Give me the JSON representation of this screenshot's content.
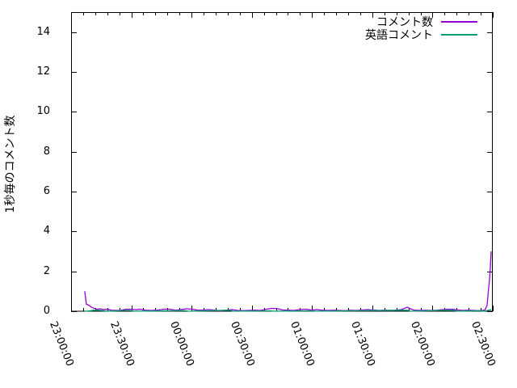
{
  "chart_data": {
    "type": "line",
    "title": "",
    "xlabel": "",
    "ylabel": "1秒毎のコメント数",
    "grid": false,
    "legend_position": "top-right-inside",
    "ylim": [
      0,
      15
    ],
    "y_ticks": [
      0,
      2,
      4,
      6,
      8,
      10,
      12,
      14
    ],
    "x_ticks": [
      "23:00:00",
      "23:30:00",
      "00:00:00",
      "00:30:00",
      "01:00:00",
      "01:30:00",
      "02:00:00",
      "02:30:00"
    ],
    "x_tick_minutes": [
      0,
      30,
      60,
      90,
      120,
      150,
      180,
      210
    ],
    "x_minor_step_minutes": 6,
    "xlim_minutes": [
      0,
      210
    ],
    "axis_color": "#000000",
    "background_color": "#ffffff",
    "series": [
      {
        "name": "コメント数",
        "color": "#9400d3",
        "points": [
          [
            6.8,
            1.0
          ],
          [
            7.6,
            0.35
          ],
          [
            8.9,
            0.3
          ],
          [
            10.1,
            0.2
          ],
          [
            11.3,
            0.15
          ],
          [
            12.9,
            0.1
          ],
          [
            14.5,
            0.12
          ],
          [
            16.1,
            0.08
          ],
          [
            18.1,
            0.1
          ],
          [
            20.1,
            0.05
          ],
          [
            22.5,
            0.04
          ],
          [
            24.9,
            0.05
          ],
          [
            27.4,
            0.1
          ],
          [
            29.8,
            0.1
          ],
          [
            32.2,
            0.08
          ],
          [
            34.6,
            0.1
          ],
          [
            37,
            0.05
          ],
          [
            40.2,
            0.04
          ],
          [
            43.4,
            0.06
          ],
          [
            46.3,
            0.1
          ],
          [
            49.1,
            0.1
          ],
          [
            51.9,
            0.05
          ],
          [
            54.7,
            0.08
          ],
          [
            57.5,
            0.12
          ],
          [
            60.3,
            0.1
          ],
          [
            63.2,
            0.05
          ],
          [
            66,
            0.06
          ],
          [
            68.8,
            0.08
          ],
          [
            71.6,
            0.05
          ],
          [
            74.4,
            0.03
          ],
          [
            77.2,
            0.05
          ],
          [
            80.1,
            0.08
          ],
          [
            82.9,
            0.04
          ],
          [
            85.7,
            0.03
          ],
          [
            88.5,
            0.04
          ],
          [
            91.3,
            0.05
          ],
          [
            94.1,
            0.04
          ],
          [
            97.4,
            0.1
          ],
          [
            100.2,
            0.14
          ],
          [
            103,
            0.12
          ],
          [
            105.4,
            0.06
          ],
          [
            108.2,
            0.05
          ],
          [
            111,
            0.04
          ],
          [
            113.9,
            0.08
          ],
          [
            116.7,
            0.1
          ],
          [
            119.5,
            0.06
          ],
          [
            122.3,
            0.08
          ],
          [
            125.1,
            0.05
          ],
          [
            127.9,
            0.04
          ],
          [
            130.8,
            0.05
          ],
          [
            133.6,
            0.04
          ],
          [
            136.4,
            0.03
          ],
          [
            139.2,
            0.05
          ],
          [
            142,
            0.04
          ],
          [
            144.8,
            0.06
          ],
          [
            147.7,
            0.08
          ],
          [
            150.5,
            0.06
          ],
          [
            153.3,
            0.04
          ],
          [
            156.1,
            0.05
          ],
          [
            158.9,
            0.04
          ],
          [
            161.7,
            0.05
          ],
          [
            164.5,
            0.08
          ],
          [
            167.4,
            0.2
          ],
          [
            169,
            0.12
          ],
          [
            171,
            0.05
          ],
          [
            173.8,
            0.04
          ],
          [
            176.6,
            0.05
          ],
          [
            179.4,
            0.04
          ],
          [
            182.3,
            0.05
          ],
          [
            185.1,
            0.08
          ],
          [
            187.5,
            0.1
          ],
          [
            189.9,
            0.1
          ],
          [
            192.3,
            0.06
          ],
          [
            195.1,
            0.04
          ],
          [
            197.9,
            0.05
          ],
          [
            200.8,
            0.04
          ],
          [
            203.6,
            0.03
          ],
          [
            206,
            0.05
          ],
          [
            207.2,
            0.3
          ],
          [
            208,
            1.2
          ],
          [
            208.4,
            1.6
          ],
          [
            208.8,
            2.2
          ],
          [
            209.2,
            3.0
          ]
        ]
      },
      {
        "name": "英語コメント",
        "color": "#009e73",
        "points": [
          [
            6.8,
            0
          ],
          [
            9.5,
            0.02
          ],
          [
            11,
            0.05
          ],
          [
            14,
            0.05
          ],
          [
            16,
            0.03
          ],
          [
            18,
            0
          ],
          [
            27,
            0.04
          ],
          [
            29.5,
            0.04
          ],
          [
            31,
            0
          ],
          [
            55,
            0.03
          ],
          [
            57,
            0.03
          ],
          [
            58.5,
            0
          ],
          [
            77.5,
            0.05
          ],
          [
            79.5,
            0.05
          ],
          [
            80.5,
            0
          ],
          [
            99,
            0.02
          ],
          [
            101,
            0
          ],
          [
            120,
            0.02
          ],
          [
            122,
            0
          ],
          [
            164,
            0.05
          ],
          [
            167.5,
            0.05
          ],
          [
            169,
            0
          ],
          [
            186,
            0.05
          ],
          [
            190.5,
            0.05
          ],
          [
            192,
            0
          ],
          [
            204,
            0.03
          ],
          [
            205.5,
            0
          ],
          [
            208,
            0.05
          ],
          [
            209.2,
            0.08
          ]
        ]
      }
    ]
  }
}
